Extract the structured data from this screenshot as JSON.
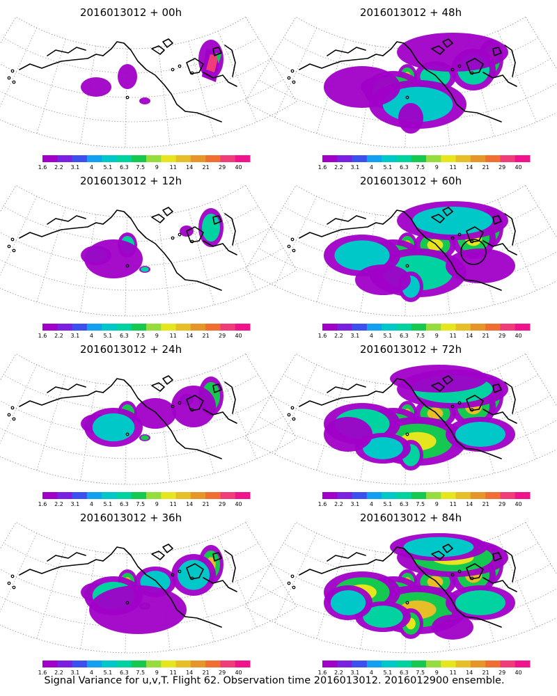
{
  "figure": {
    "caption": "Signal Variance for u,v,T. Flight 62. Observation time 2016013012. 2016012900 ensemble."
  },
  "colorbar": {
    "tick_labels": [
      "1.6",
      "2.2",
      "3.1",
      "4",
      "5.1",
      "6.3",
      "7.5",
      "9",
      "11",
      "14",
      "21",
      "29",
      "40"
    ],
    "colors": [
      "#a000c8",
      "#7a20e0",
      "#3c50f0",
      "#14a0f0",
      "#00c8c8",
      "#00d2a0",
      "#14c850",
      "#96dc3c",
      "#e6e61e",
      "#e6be28",
      "#e69628",
      "#f06e32",
      "#f03c78",
      "#f0148c"
    ]
  },
  "panels": [
    {
      "title": "2016013012 + 00h",
      "intensity": 0
    },
    {
      "title": "2016013012 + 48h",
      "intensity": 4
    },
    {
      "title": "2016013012 + 12h",
      "intensity": 1
    },
    {
      "title": "2016013012 + 60h",
      "intensity": 5
    },
    {
      "title": "2016013012 + 24h",
      "intensity": 2
    },
    {
      "title": "2016013012 + 72h",
      "intensity": 6
    },
    {
      "title": "2016013012 + 36h",
      "intensity": 3
    },
    {
      "title": "2016013012 + 84h",
      "intensity": 7
    }
  ]
}
